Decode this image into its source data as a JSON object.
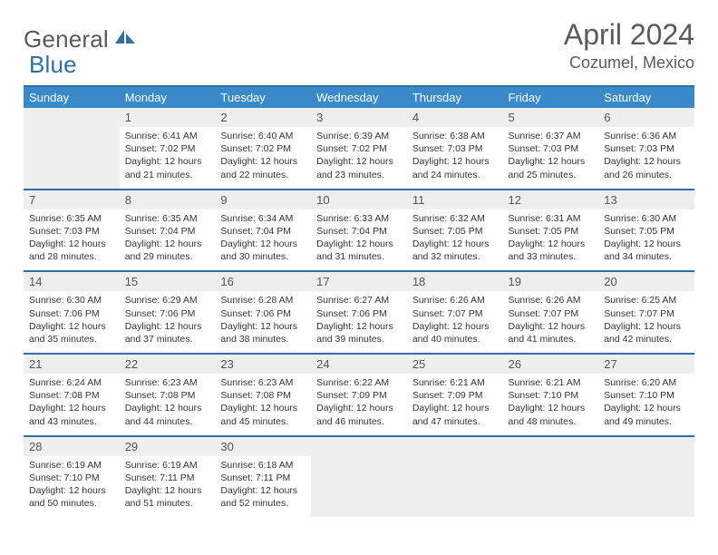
{
  "brand": {
    "part1": "General",
    "part2": "Blue"
  },
  "title": "April 2024",
  "location": "Cozumel, Mexico",
  "colors": {
    "header_bg": "#3a8ac9",
    "rule": "#2f6fa8",
    "daynum_bg": "#eeeeee",
    "text": "#5a5a5a",
    "logo_blue": "#2f6fa8"
  },
  "weekdays": [
    "Sunday",
    "Monday",
    "Tuesday",
    "Wednesday",
    "Thursday",
    "Friday",
    "Saturday"
  ],
  "weeks": [
    [
      null,
      {
        "n": "1",
        "sunrise": "6:41 AM",
        "sunset": "7:02 PM",
        "daylight": "12 hours and 21 minutes."
      },
      {
        "n": "2",
        "sunrise": "6:40 AM",
        "sunset": "7:02 PM",
        "daylight": "12 hours and 22 minutes."
      },
      {
        "n": "3",
        "sunrise": "6:39 AM",
        "sunset": "7:02 PM",
        "daylight": "12 hours and 23 minutes."
      },
      {
        "n": "4",
        "sunrise": "6:38 AM",
        "sunset": "7:03 PM",
        "daylight": "12 hours and 24 minutes."
      },
      {
        "n": "5",
        "sunrise": "6:37 AM",
        "sunset": "7:03 PM",
        "daylight": "12 hours and 25 minutes."
      },
      {
        "n": "6",
        "sunrise": "6:36 AM",
        "sunset": "7:03 PM",
        "daylight": "12 hours and 26 minutes."
      }
    ],
    [
      {
        "n": "7",
        "sunrise": "6:35 AM",
        "sunset": "7:03 PM",
        "daylight": "12 hours and 28 minutes."
      },
      {
        "n": "8",
        "sunrise": "6:35 AM",
        "sunset": "7:04 PM",
        "daylight": "12 hours and 29 minutes."
      },
      {
        "n": "9",
        "sunrise": "6:34 AM",
        "sunset": "7:04 PM",
        "daylight": "12 hours and 30 minutes."
      },
      {
        "n": "10",
        "sunrise": "6:33 AM",
        "sunset": "7:04 PM",
        "daylight": "12 hours and 31 minutes."
      },
      {
        "n": "11",
        "sunrise": "6:32 AM",
        "sunset": "7:05 PM",
        "daylight": "12 hours and 32 minutes."
      },
      {
        "n": "12",
        "sunrise": "6:31 AM",
        "sunset": "7:05 PM",
        "daylight": "12 hours and 33 minutes."
      },
      {
        "n": "13",
        "sunrise": "6:30 AM",
        "sunset": "7:05 PM",
        "daylight": "12 hours and 34 minutes."
      }
    ],
    [
      {
        "n": "14",
        "sunrise": "6:30 AM",
        "sunset": "7:06 PM",
        "daylight": "12 hours and 35 minutes."
      },
      {
        "n": "15",
        "sunrise": "6:29 AM",
        "sunset": "7:06 PM",
        "daylight": "12 hours and 37 minutes."
      },
      {
        "n": "16",
        "sunrise": "6:28 AM",
        "sunset": "7:06 PM",
        "daylight": "12 hours and 38 minutes."
      },
      {
        "n": "17",
        "sunrise": "6:27 AM",
        "sunset": "7:06 PM",
        "daylight": "12 hours and 39 minutes."
      },
      {
        "n": "18",
        "sunrise": "6:26 AM",
        "sunset": "7:07 PM",
        "daylight": "12 hours and 40 minutes."
      },
      {
        "n": "19",
        "sunrise": "6:26 AM",
        "sunset": "7:07 PM",
        "daylight": "12 hours and 41 minutes."
      },
      {
        "n": "20",
        "sunrise": "6:25 AM",
        "sunset": "7:07 PM",
        "daylight": "12 hours and 42 minutes."
      }
    ],
    [
      {
        "n": "21",
        "sunrise": "6:24 AM",
        "sunset": "7:08 PM",
        "daylight": "12 hours and 43 minutes."
      },
      {
        "n": "22",
        "sunrise": "6:23 AM",
        "sunset": "7:08 PM",
        "daylight": "12 hours and 44 minutes."
      },
      {
        "n": "23",
        "sunrise": "6:23 AM",
        "sunset": "7:08 PM",
        "daylight": "12 hours and 45 minutes."
      },
      {
        "n": "24",
        "sunrise": "6:22 AM",
        "sunset": "7:09 PM",
        "daylight": "12 hours and 46 minutes."
      },
      {
        "n": "25",
        "sunrise": "6:21 AM",
        "sunset": "7:09 PM",
        "daylight": "12 hours and 47 minutes."
      },
      {
        "n": "26",
        "sunrise": "6:21 AM",
        "sunset": "7:10 PM",
        "daylight": "12 hours and 48 minutes."
      },
      {
        "n": "27",
        "sunrise": "6:20 AM",
        "sunset": "7:10 PM",
        "daylight": "12 hours and 49 minutes."
      }
    ],
    [
      {
        "n": "28",
        "sunrise": "6:19 AM",
        "sunset": "7:10 PM",
        "daylight": "12 hours and 50 minutes."
      },
      {
        "n": "29",
        "sunrise": "6:19 AM",
        "sunset": "7:11 PM",
        "daylight": "12 hours and 51 minutes."
      },
      {
        "n": "30",
        "sunrise": "6:18 AM",
        "sunset": "7:11 PM",
        "daylight": "12 hours and 52 minutes."
      },
      null,
      null,
      null,
      null
    ]
  ],
  "labels": {
    "sunrise": "Sunrise:",
    "sunset": "Sunset:",
    "daylight": "Daylight:"
  }
}
